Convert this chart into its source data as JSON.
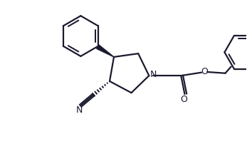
{
  "bg_color": "#ffffff",
  "line_color": "#1a1a2e",
  "line_width": 1.6,
  "figsize": [
    3.47,
    2.09
  ],
  "dpi": 100,
  "xlim": [
    0,
    10
  ],
  "ylim": [
    0,
    6
  ]
}
